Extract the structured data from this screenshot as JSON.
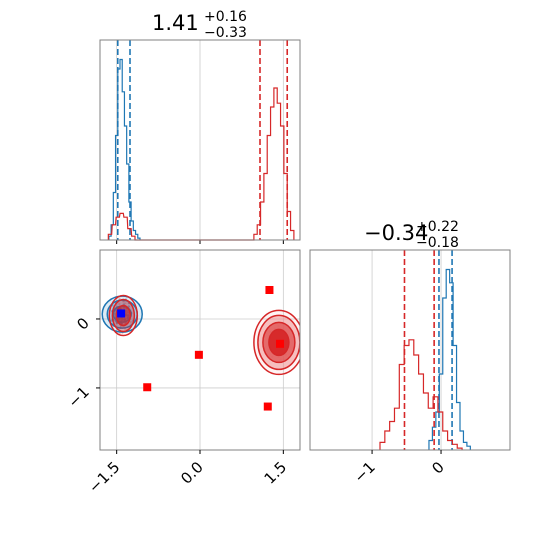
{
  "chart_data": [
    {
      "panel": "marginal-x",
      "type": "histogram",
      "title": {
        "value": "1.41",
        "plus": "+0.16",
        "minus": "−0.33"
      },
      "xlim": [
        -1.8,
        1.8
      ],
      "grid": true,
      "series": [
        {
          "color": "#1f77b4",
          "bins_x": [
            -1.62,
            -1.58,
            -1.54,
            -1.5,
            -1.46,
            -1.42,
            -1.38,
            -1.34,
            -1.3,
            -1.26,
            -1.22,
            -1.18,
            -1.14,
            -1.1
          ],
          "heights": [
            0.02,
            0.08,
            0.25,
            0.55,
            0.9,
            0.95,
            0.78,
            0.6,
            0.4,
            0.2,
            0.1,
            0.05,
            0.03,
            0.01
          ],
          "quantiles": [
            -1.48,
            -1.26
          ]
        },
        {
          "color": "#d62728",
          "bins_x": [
            -1.62,
            -1.55,
            -1.48,
            -1.41,
            -1.34,
            -1.27,
            -1.2,
            1.0,
            1.06,
            1.12,
            1.18,
            1.24,
            1.3,
            1.36,
            1.42,
            1.48,
            1.54,
            1.6,
            1.66
          ],
          "heights": [
            0.03,
            0.08,
            0.12,
            0.14,
            0.12,
            0.06,
            0.02,
            0.03,
            0.08,
            0.2,
            0.35,
            0.55,
            0.7,
            0.8,
            0.72,
            0.6,
            0.35,
            0.15,
            0.05
          ],
          "quantiles": [
            1.08,
            1.57
          ]
        }
      ]
    },
    {
      "panel": "joint",
      "type": "scatter",
      "xlim": [
        -1.8,
        1.8
      ],
      "ylim": [
        -1.9,
        1.0
      ],
      "xticks": [
        -1.5,
        0.0,
        1.5
      ],
      "xticklabels": [
        "−1.5",
        "0.0",
        "1.5"
      ],
      "yticks": [
        0,
        -1
      ],
      "yticklabels": [
        "0",
        "−1"
      ],
      "grid": true,
      "blue_cluster": {
        "x": -1.4,
        "y": 0.07
      },
      "red_clusters": [
        {
          "x": -1.38,
          "y": 0.05
        },
        {
          "x": 1.42,
          "y": -0.34
        }
      ],
      "markers": [
        {
          "x": -1.42,
          "y": 0.08,
          "color": "#0000ff"
        },
        {
          "x": -0.95,
          "y": -0.99,
          "color": "#ff0000"
        },
        {
          "x": -0.02,
          "y": -0.52,
          "color": "#ff0000"
        },
        {
          "x": 1.25,
          "y": 0.42,
          "color": "#ff0000"
        },
        {
          "x": 1.22,
          "y": -1.27,
          "color": "#ff0000"
        },
        {
          "x": 1.44,
          "y": -0.36,
          "color": "#ff0000"
        }
      ]
    },
    {
      "panel": "marginal-y",
      "type": "histogram",
      "title": {
        "value": "−0.34",
        "plus": "+0.22",
        "minus": "−0.18"
      },
      "xlim": [
        -1.9,
        1.0
      ],
      "xticks": [
        -1,
        0
      ],
      "xticklabels": [
        "−1",
        "0"
      ],
      "grid": true,
      "series": [
        {
          "color": "#1f77b4",
          "bins_x": [
            -0.15,
            -0.1,
            -0.05,
            0.0,
            0.05,
            0.1,
            0.15,
            0.2,
            0.25,
            0.3,
            0.35,
            0.4
          ],
          "heights": [
            0.05,
            0.12,
            0.2,
            0.4,
            0.8,
            0.95,
            0.88,
            0.55,
            0.25,
            0.1,
            0.04,
            0.02
          ],
          "quantiles": [
            -0.03,
            0.16
          ]
        },
        {
          "color": "#d62728",
          "bins_x": [
            -0.85,
            -0.78,
            -0.71,
            -0.64,
            -0.57,
            -0.5,
            -0.43,
            -0.36,
            -0.29,
            -0.22,
            -0.15,
            -0.08,
            -0.01,
            0.06,
            0.13,
            0.2,
            0.27
          ],
          "heights": [
            0.04,
            0.1,
            0.15,
            0.22,
            0.45,
            0.55,
            0.58,
            0.5,
            0.4,
            0.3,
            0.22,
            0.28,
            0.2,
            0.1,
            0.05,
            0.03,
            0.01
          ],
          "quantiles": [
            -0.53,
            -0.1
          ]
        }
      ]
    }
  ]
}
